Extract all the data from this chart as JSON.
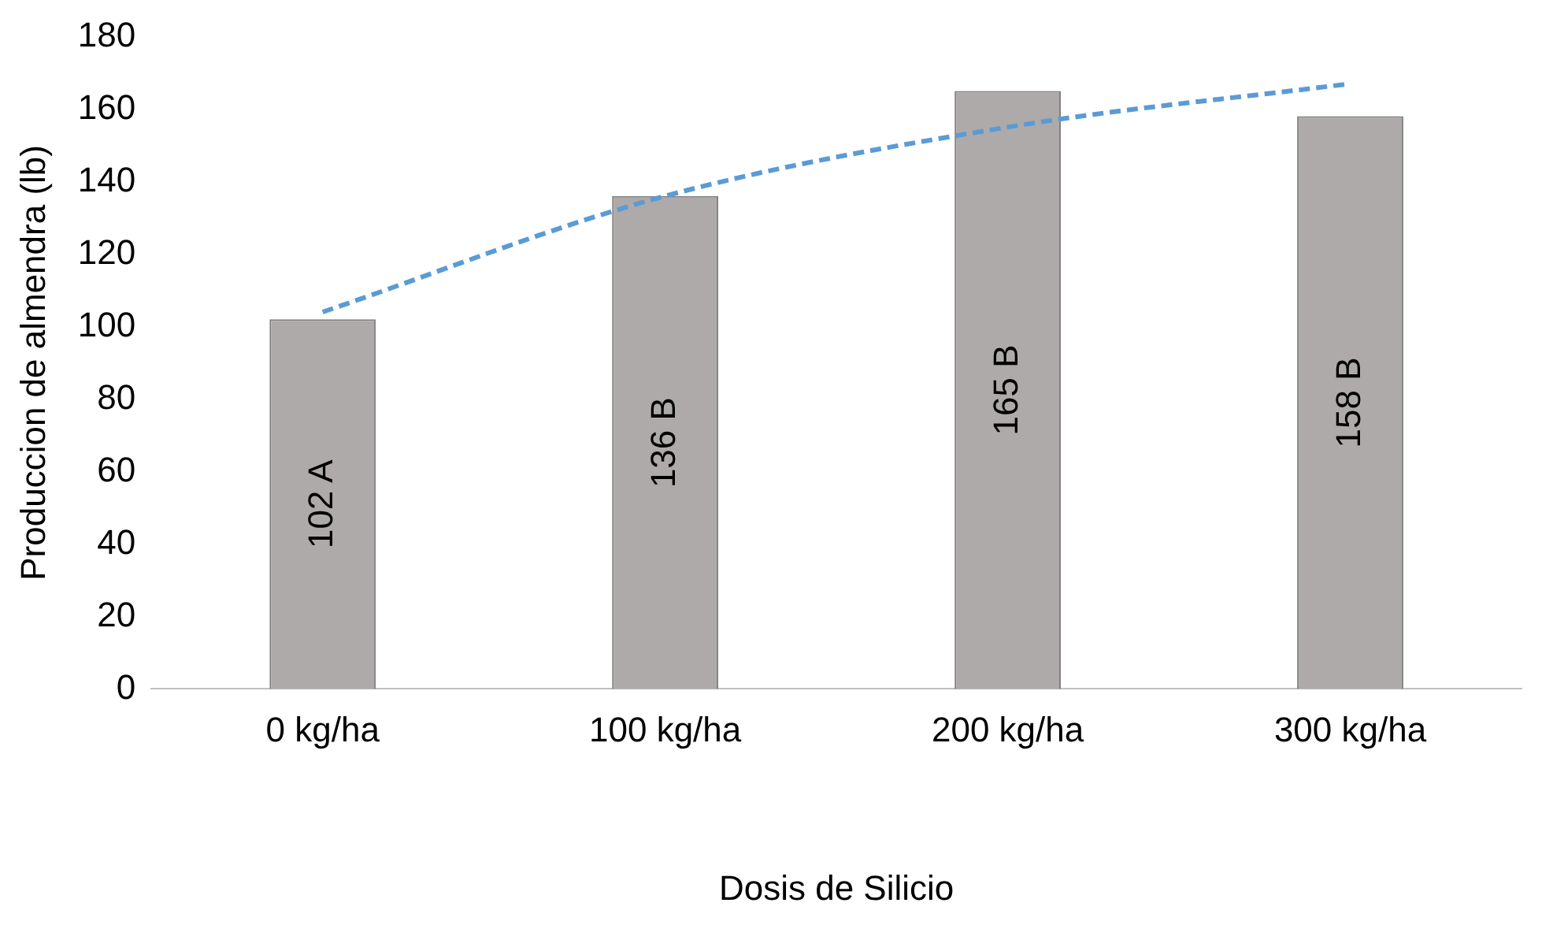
{
  "chart_data": {
    "type": "bar",
    "xlabel": "Dosis de Silicio",
    "ylabel": "Produccion de almendra (lb)",
    "categories": [
      "0 kg/ha",
      "100 kg/ha",
      "200 kg/ha",
      "300 kg/ha"
    ],
    "series": [
      {
        "color": "#aeaaaa",
        "values": [
          102,
          136,
          165,
          158
        ],
        "value_labels": [
          "102 A",
          "136 B",
          "165 B",
          "158 B"
        ]
      },
      {
        "type": "line",
        "color": "#5b9bd5",
        "x": [
          "0 kg/ha",
          "100 kg/ha",
          "200 kg/ha",
          "300 kg/ha"
        ],
        "values": [
          104,
          136,
          155,
          167
        ],
        "line_style": "dashed",
        "marker": "none"
      }
    ],
    "ylim": [
      0,
      180
    ],
    "yticks": [
      0,
      20,
      40,
      60,
      80,
      100,
      120,
      140,
      160,
      180
    ],
    "grid": false,
    "legend": false
  }
}
